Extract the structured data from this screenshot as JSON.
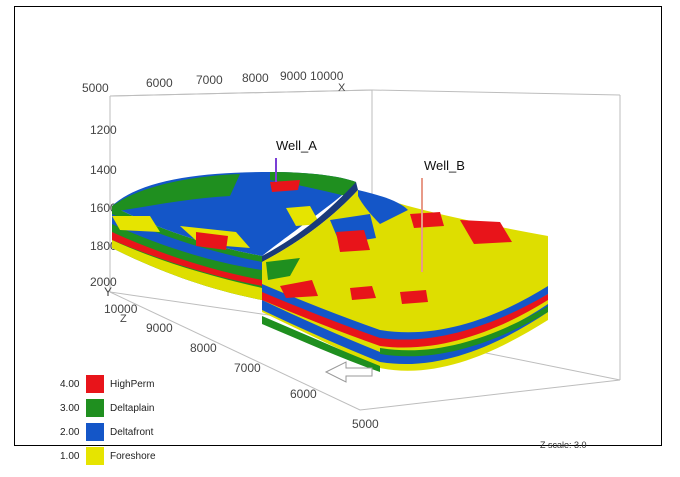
{
  "axes": {
    "x_label": "X",
    "y_label": "Y",
    "z_label": "Z",
    "x_ticks": [
      "5000",
      "6000",
      "7000",
      "8000",
      "9000",
      "10000"
    ],
    "depth_ticks": [
      "1200",
      "1400",
      "1600",
      "1800",
      "2000"
    ],
    "y_ticks": [
      "10000",
      "9000",
      "8000",
      "7000",
      "6000",
      "5000"
    ]
  },
  "wells": [
    {
      "name": "Well_A",
      "color": "#7b3fd6"
    },
    {
      "name": "Well_B",
      "color": "#e89a88"
    }
  ],
  "legend": [
    {
      "value": "4.00",
      "label": "HighPerm",
      "color": "#e8141a"
    },
    {
      "value": "3.00",
      "label": "Deltaplain",
      "color": "#1f8f1f"
    },
    {
      "value": "2.00",
      "label": "Deltafront",
      "color": "#1456c8"
    },
    {
      "value": "1.00",
      "label": "Foreshore",
      "color": "#e6e400"
    }
  ],
  "zscale": "Z scale: 3.0",
  "colors": {
    "box_lines": "#bbbbbb",
    "foreshore": "#dede00",
    "foreshore_dark": "#c9c800"
  }
}
